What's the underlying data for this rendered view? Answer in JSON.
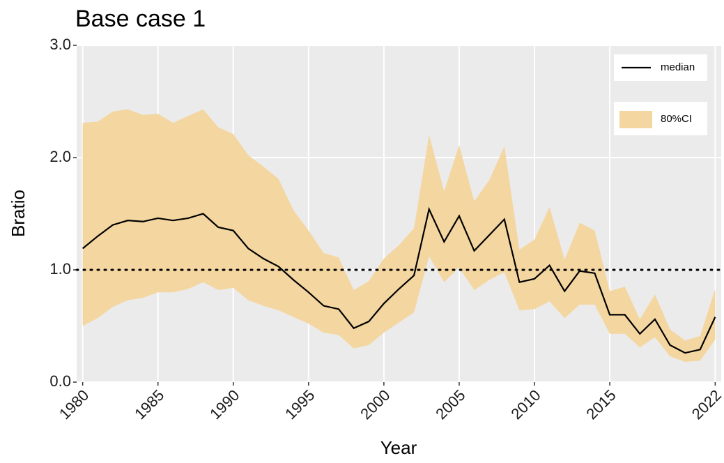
{
  "chart_data": {
    "type": "line",
    "title": "Base case 1",
    "x_label": "Year",
    "y_label": "Bratio",
    "x": [
      1980,
      1981,
      1982,
      1983,
      1984,
      1985,
      1986,
      1987,
      1988,
      1989,
      1990,
      1991,
      1992,
      1993,
      1994,
      1995,
      1996,
      1997,
      1998,
      1999,
      2000,
      2001,
      2002,
      2003,
      2004,
      2005,
      2006,
      2007,
      2008,
      2009,
      2010,
      2011,
      2012,
      2013,
      2014,
      2015,
      2016,
      2017,
      2018,
      2019,
      2020,
      2021,
      2022
    ],
    "series": [
      {
        "name": "median",
        "color": "#000000",
        "values": [
          1.19,
          1.3,
          1.4,
          1.44,
          1.43,
          1.46,
          1.44,
          1.46,
          1.5,
          1.38,
          1.35,
          1.19,
          1.1,
          1.03,
          0.91,
          0.8,
          0.68,
          0.65,
          0.48,
          0.54,
          0.7,
          0.83,
          0.95,
          1.54,
          1.25,
          1.48,
          1.17,
          1.31,
          1.45,
          0.89,
          0.92,
          1.04,
          0.81,
          0.99,
          0.97,
          0.6,
          0.6,
          0.43,
          0.56,
          0.33,
          0.26,
          0.29,
          0.58
        ]
      }
    ],
    "band": {
      "name": "80%CI",
      "color": "#f4d6a0",
      "upper": [
        2.31,
        2.32,
        2.41,
        2.43,
        2.38,
        2.39,
        2.31,
        2.37,
        2.43,
        2.27,
        2.21,
        2.02,
        1.92,
        1.81,
        1.53,
        1.35,
        1.15,
        1.11,
        0.82,
        0.9,
        1.1,
        1.22,
        1.37,
        2.2,
        1.7,
        2.11,
        1.61,
        1.8,
        2.1,
        1.18,
        1.27,
        1.56,
        1.09,
        1.42,
        1.35,
        0.81,
        0.85,
        0.56,
        0.78,
        0.47,
        0.37,
        0.41,
        0.83
      ],
      "lower": [
        0.5,
        0.57,
        0.67,
        0.73,
        0.75,
        0.8,
        0.8,
        0.83,
        0.89,
        0.82,
        0.84,
        0.73,
        0.68,
        0.64,
        0.58,
        0.52,
        0.44,
        0.42,
        0.3,
        0.33,
        0.44,
        0.53,
        0.62,
        1.12,
        0.89,
        1.02,
        0.82,
        0.91,
        0.98,
        0.64,
        0.65,
        0.72,
        0.57,
        0.69,
        0.69,
        0.43,
        0.43,
        0.31,
        0.4,
        0.23,
        0.18,
        0.19,
        0.38
      ]
    },
    "hline": 1,
    "xlim": [
      1979.6,
      2022.4
    ],
    "ylim": [
      0,
      3
    ],
    "xticks": [
      1980,
      1985,
      1990,
      1995,
      2000,
      2005,
      2010,
      2015,
      2022
    ],
    "yticks": [
      {
        "value": 0,
        "label": "0.0"
      },
      {
        "value": 1,
        "label": "1.0"
      },
      {
        "value": 2,
        "label": "2.0"
      },
      {
        "value": 3,
        "label": "3.0"
      }
    ],
    "grid": true,
    "legend": "top-right"
  }
}
